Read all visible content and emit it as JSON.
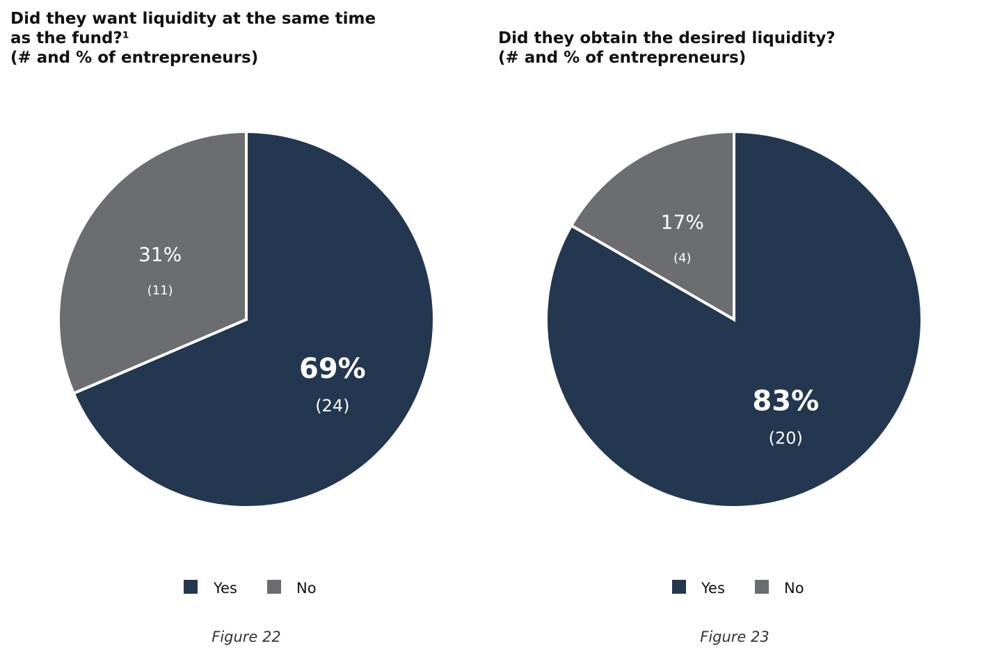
{
  "colors": {
    "yes": "#233750",
    "no": "#6c6d71",
    "wedge_edge": "#ffffff"
  },
  "chart_data": [
    {
      "type": "pie",
      "title_lines": [
        "Did they want liquidity at the same time",
        "as the fund?¹",
        "(# and % of entrepreneurs)"
      ],
      "categories": [
        "Yes",
        "No"
      ],
      "values": [
        24,
        11
      ],
      "percent_labels": [
        "69%",
        "31%"
      ],
      "count_labels": [
        "(24)",
        "(11)"
      ],
      "legend": [
        "Yes",
        "No"
      ],
      "caption": "Figure 22"
    },
    {
      "type": "pie",
      "title_lines": [
        "Did they obtain the desired liquidity?",
        "(# and % of entrepreneurs)"
      ],
      "categories": [
        "Yes",
        "No"
      ],
      "values": [
        20,
        4
      ],
      "percent_labels": [
        "83%",
        "17%"
      ],
      "count_labels": [
        "(20)",
        "(4)"
      ],
      "legend": [
        "Yes",
        "No"
      ],
      "caption": "Figure 23"
    }
  ]
}
